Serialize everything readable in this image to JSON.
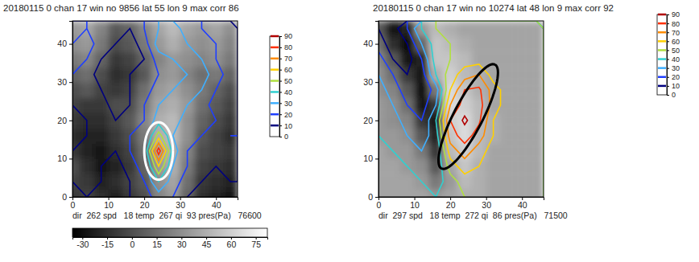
{
  "chart_data": [
    {
      "type": "contour",
      "title": "20180115 0 chan 17 win no 9856 lat 55 lon 9 max corr 86",
      "info": "dir  262 spd   18 temp  267 qi  93 pres(Pa)   76600",
      "xlim": [
        0,
        46
      ],
      "ylim": [
        0,
        46
      ],
      "xticks": [
        0,
        10,
        20,
        30,
        40
      ],
      "yticks": [
        0,
        10,
        20,
        30,
        40
      ],
      "grid_x": [
        0,
        4,
        8,
        12,
        16,
        20,
        24,
        28,
        32,
        36,
        40,
        44
      ],
      "grid_y": [
        0,
        4,
        8,
        12,
        16,
        20,
        24,
        28,
        32,
        36,
        40,
        44
      ],
      "field_range": [
        -36,
        82
      ],
      "field": [
        [
          -10,
          -5,
          -15,
          -20,
          -10,
          0,
          25,
          35,
          10,
          -15,
          -20,
          -25
        ],
        [
          -5,
          -10,
          -20,
          -15,
          -5,
          5,
          30,
          40,
          15,
          -10,
          -15,
          -20
        ],
        [
          0,
          -15,
          -25,
          -20,
          -10,
          10,
          35,
          45,
          20,
          -5,
          -10,
          -15
        ],
        [
          -10,
          -20,
          -25,
          -15,
          -5,
          15,
          40,
          45,
          25,
          0,
          -5,
          -10
        ],
        [
          -15,
          -20,
          -20,
          -10,
          0,
          20,
          45,
          50,
          30,
          5,
          -5,
          -15
        ],
        [
          -10,
          -15,
          -15,
          -5,
          5,
          25,
          45,
          50,
          30,
          10,
          0,
          -10
        ],
        [
          -5,
          -10,
          -10,
          0,
          0,
          20,
          40,
          45,
          35,
          15,
          5,
          -5
        ],
        [
          0,
          5,
          -5,
          -10,
          -5,
          15,
          35,
          40,
          30,
          20,
          10,
          0
        ],
        [
          10,
          15,
          0,
          -15,
          -10,
          5,
          30,
          35,
          25,
          15,
          20,
          10
        ],
        [
          20,
          25,
          10,
          -10,
          -5,
          10,
          25,
          35,
          30,
          25,
          30,
          20
        ],
        [
          30,
          35,
          20,
          0,
          5,
          20,
          35,
          45,
          35,
          30,
          35,
          25
        ],
        [
          35,
          40,
          25,
          5,
          10,
          25,
          40,
          50,
          40,
          35,
          40,
          30
        ]
      ],
      "field_colorbar": {
        "ticks": [
          -30,
          -15,
          0,
          15,
          30,
          45,
          60,
          75
        ]
      },
      "corr": [
        [
          5,
          10,
          5,
          5,
          10,
          15,
          25,
          20,
          10,
          5,
          5,
          5
        ],
        [
          10,
          15,
          10,
          5,
          10,
          20,
          40,
          25,
          15,
          10,
          5,
          10
        ],
        [
          15,
          20,
          10,
          5,
          15,
          25,
          60,
          30,
          20,
          15,
          10,
          10
        ],
        [
          10,
          15,
          10,
          10,
          20,
          30,
          86,
          35,
          20,
          15,
          10,
          15
        ],
        [
          5,
          10,
          15,
          15,
          20,
          25,
          55,
          30,
          25,
          20,
          15,
          20
        ],
        [
          5,
          10,
          20,
          10,
          15,
          20,
          35,
          35,
          25,
          20,
          20,
          15
        ],
        [
          10,
          15,
          15,
          5,
          10,
          20,
          30,
          35,
          30,
          25,
          15,
          10
        ],
        [
          15,
          10,
          10,
          5,
          10,
          15,
          25,
          30,
          35,
          30,
          20,
          10
        ],
        [
          20,
          15,
          5,
          5,
          10,
          15,
          20,
          25,
          30,
          35,
          25,
          15
        ],
        [
          25,
          20,
          10,
          5,
          5,
          10,
          25,
          30,
          35,
          30,
          20,
          15
        ],
        [
          20,
          25,
          15,
          10,
          5,
          15,
          35,
          40,
          30,
          25,
          20,
          10
        ],
        [
          15,
          20,
          15,
          10,
          10,
          20,
          30,
          35,
          25,
          20,
          15,
          10
        ]
      ],
      "contour_levels": [
        10,
        20,
        30,
        40,
        50,
        60,
        70,
        80,
        90
      ],
      "colors": [
        "#00007f",
        "#1f3fff",
        "#3fafff",
        "#30d0d0",
        "#b0e040",
        "#ffd000",
        "#ff8c00",
        "#ff3000",
        "#b00000"
      ],
      "colorbar": {
        "range": [
          0,
          90
        ],
        "ticks": [
          0,
          10,
          20,
          30,
          40,
          50,
          60,
          70,
          80,
          90
        ]
      },
      "ellipse": {
        "center": [
          24,
          12
        ],
        "semi_axes": [
          4,
          7.5
        ],
        "angle": 0,
        "color": "#ffffff"
      }
    },
    {
      "type": "contour",
      "title": "20180115 0 chan 17 win no 10274 lat 48 lon 9 max corr 92",
      "info": "dir  297 spd   18 temp  272 qi  86 pres(Pa)   71500",
      "xlim": [
        0,
        46
      ],
      "ylim": [
        0,
        46
      ],
      "xticks": [
        0,
        10,
        20,
        30,
        40
      ],
      "yticks": [
        0,
        10,
        20,
        30,
        40
      ],
      "grid_x": [
        0,
        4,
        8,
        12,
        16,
        20,
        24,
        28,
        32,
        36,
        40,
        44
      ],
      "grid_y": [
        0,
        4,
        8,
        12,
        16,
        20,
        24,
        28,
        32,
        36,
        40,
        44
      ],
      "field_range": [
        -36,
        82
      ],
      "field": [
        [
          40,
          40,
          40,
          40,
          35,
          40,
          45,
          45,
          40,
          40,
          40,
          40
        ],
        [
          40,
          40,
          40,
          35,
          20,
          35,
          50,
          45,
          40,
          40,
          40,
          40
        ],
        [
          40,
          40,
          35,
          30,
          5,
          40,
          55,
          45,
          40,
          40,
          40,
          40
        ],
        [
          40,
          35,
          35,
          20,
          -10,
          50,
          60,
          50,
          40,
          40,
          40,
          40
        ],
        [
          35,
          35,
          30,
          5,
          -20,
          55,
          65,
          50,
          45,
          40,
          40,
          40
        ],
        [
          35,
          30,
          25,
          -10,
          -25,
          60,
          65,
          50,
          45,
          40,
          40,
          40
        ],
        [
          35,
          30,
          15,
          -25,
          -10,
          65,
          60,
          50,
          40,
          40,
          40,
          40
        ],
        [
          30,
          25,
          5,
          -30,
          20,
          65,
          55,
          45,
          40,
          40,
          40,
          40
        ],
        [
          30,
          15,
          -10,
          -25,
          45,
          60,
          50,
          45,
          40,
          40,
          40,
          40
        ],
        [
          25,
          5,
          -25,
          -20,
          55,
          55,
          50,
          40,
          40,
          40,
          40,
          40
        ],
        [
          15,
          -15,
          -30,
          10,
          55,
          50,
          45,
          40,
          40,
          40,
          40,
          40
        ],
        [
          5,
          -25,
          -20,
          35,
          50,
          45,
          40,
          40,
          40,
          40,
          40,
          40
        ]
      ],
      "corr": [
        [
          40,
          40,
          45,
          45,
          40,
          45,
          50,
          55,
          50,
          50,
          50,
          50
        ],
        [
          40,
          40,
          40,
          40,
          35,
          45,
          55,
          55,
          55,
          50,
          50,
          50
        ],
        [
          40,
          40,
          40,
          35,
          30,
          55,
          65,
          60,
          55,
          50,
          50,
          50
        ],
        [
          40,
          40,
          35,
          30,
          30,
          65,
          75,
          65,
          55,
          50,
          50,
          50
        ],
        [
          40,
          35,
          30,
          25,
          35,
          75,
          85,
          75,
          60,
          55,
          50,
          50
        ],
        [
          40,
          35,
          25,
          20,
          40,
          80,
          92,
          82,
          60,
          55,
          50,
          50
        ],
        [
          35,
          30,
          20,
          15,
          30,
          70,
          85,
          85,
          65,
          55,
          50,
          50
        ],
        [
          35,
          25,
          15,
          10,
          25,
          60,
          80,
          82,
          65,
          55,
          50,
          50
        ],
        [
          30,
          20,
          10,
          15,
          40,
          55,
          65,
          70,
          55,
          50,
          50,
          50
        ],
        [
          25,
          10,
          5,
          20,
          45,
          50,
          55,
          55,
          50,
          50,
          50,
          50
        ],
        [
          15,
          5,
          10,
          30,
          45,
          50,
          50,
          50,
          50,
          50,
          50,
          50
        ],
        [
          10,
          5,
          20,
          40,
          50,
          50,
          50,
          50,
          50,
          50,
          50,
          50
        ]
      ],
      "contour_levels": [
        10,
        20,
        30,
        40,
        50,
        60,
        70,
        80,
        90
      ],
      "colors": [
        "#00007f",
        "#1f3fff",
        "#3fafff",
        "#30d0d0",
        "#b0e040",
        "#ffd000",
        "#ff8c00",
        "#ff3000",
        "#b00000"
      ],
      "colorbar": {
        "range": [
          0,
          90
        ],
        "ticks": [
          0,
          10,
          20,
          30,
          40,
          50,
          60,
          70,
          80,
          90
        ]
      },
      "ellipse": {
        "center": [
          25,
          21
        ],
        "semi_axes": [
          15.5,
          4
        ],
        "angle": 61,
        "color": "#000000"
      }
    }
  ]
}
